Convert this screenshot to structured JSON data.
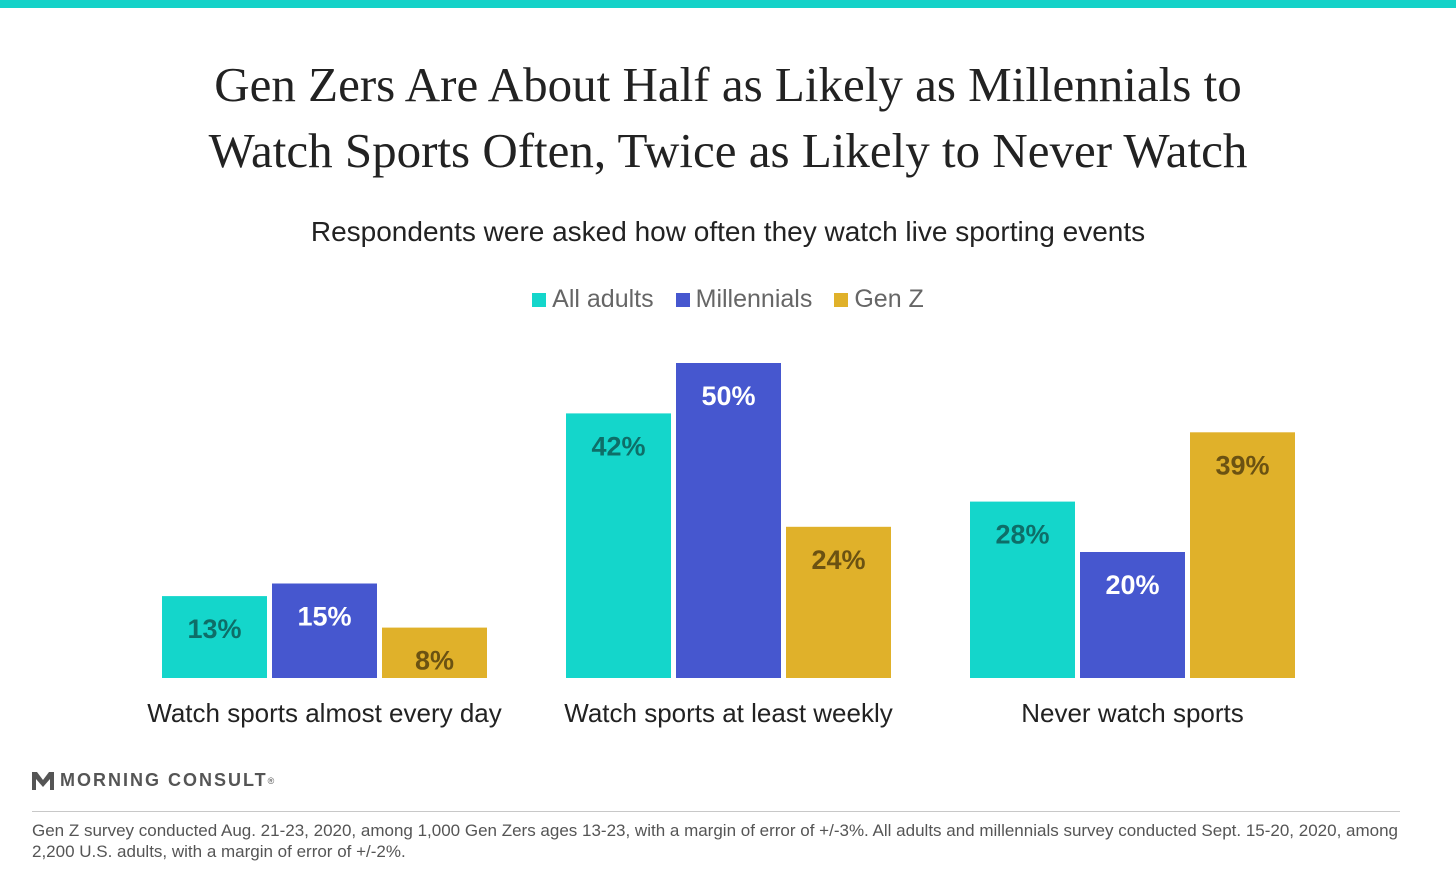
{
  "title_lines": [
    "Gen Zers Are About Half as Likely as Millennials to",
    "Watch Sports Often, Twice as Likely to Never Watch"
  ],
  "subtitle": "Respondents were asked how often they watch live sporting events",
  "chart_data": {
    "type": "bar",
    "categories": [
      "Watch sports almost every day",
      "Watch sports at least weekly",
      "Never watch sports"
    ],
    "series": [
      {
        "name": "All adults",
        "values": [
          13,
          42,
          28
        ],
        "labels": [
          "13%",
          "42%",
          "28%"
        ],
        "color": "#14d6cb",
        "label_color": "#0e6e68"
      },
      {
        "name": "Millennials",
        "values": [
          15,
          50,
          20
        ],
        "labels": [
          "15%",
          "50%",
          "20%"
        ],
        "color": "#4657cf",
        "label_color": "#ffffff"
      },
      {
        "name": "Gen Z",
        "values": [
          8,
          24,
          39
        ],
        "labels": [
          "8%",
          "24%",
          "39%"
        ],
        "color": "#e0b12a",
        "label_color": "#6b5212"
      }
    ],
    "ylim": [
      0,
      50
    ],
    "grid": false,
    "legend_position": "top-center"
  },
  "branding": {
    "logo_text": "MORNING CONSULT",
    "logo_icon": "morning-consult-m-icon",
    "registered_mark": "®"
  },
  "footnote": "Gen Z survey conducted Aug. 21-23, 2020, among 1,000 Gen Zers ages 13-23, with a margin of error of +/-3%. All adults and millennials survey conducted Sept. 15-20, 2020, among 2,200 U.S. adults, with a margin of error of +/-2%."
}
